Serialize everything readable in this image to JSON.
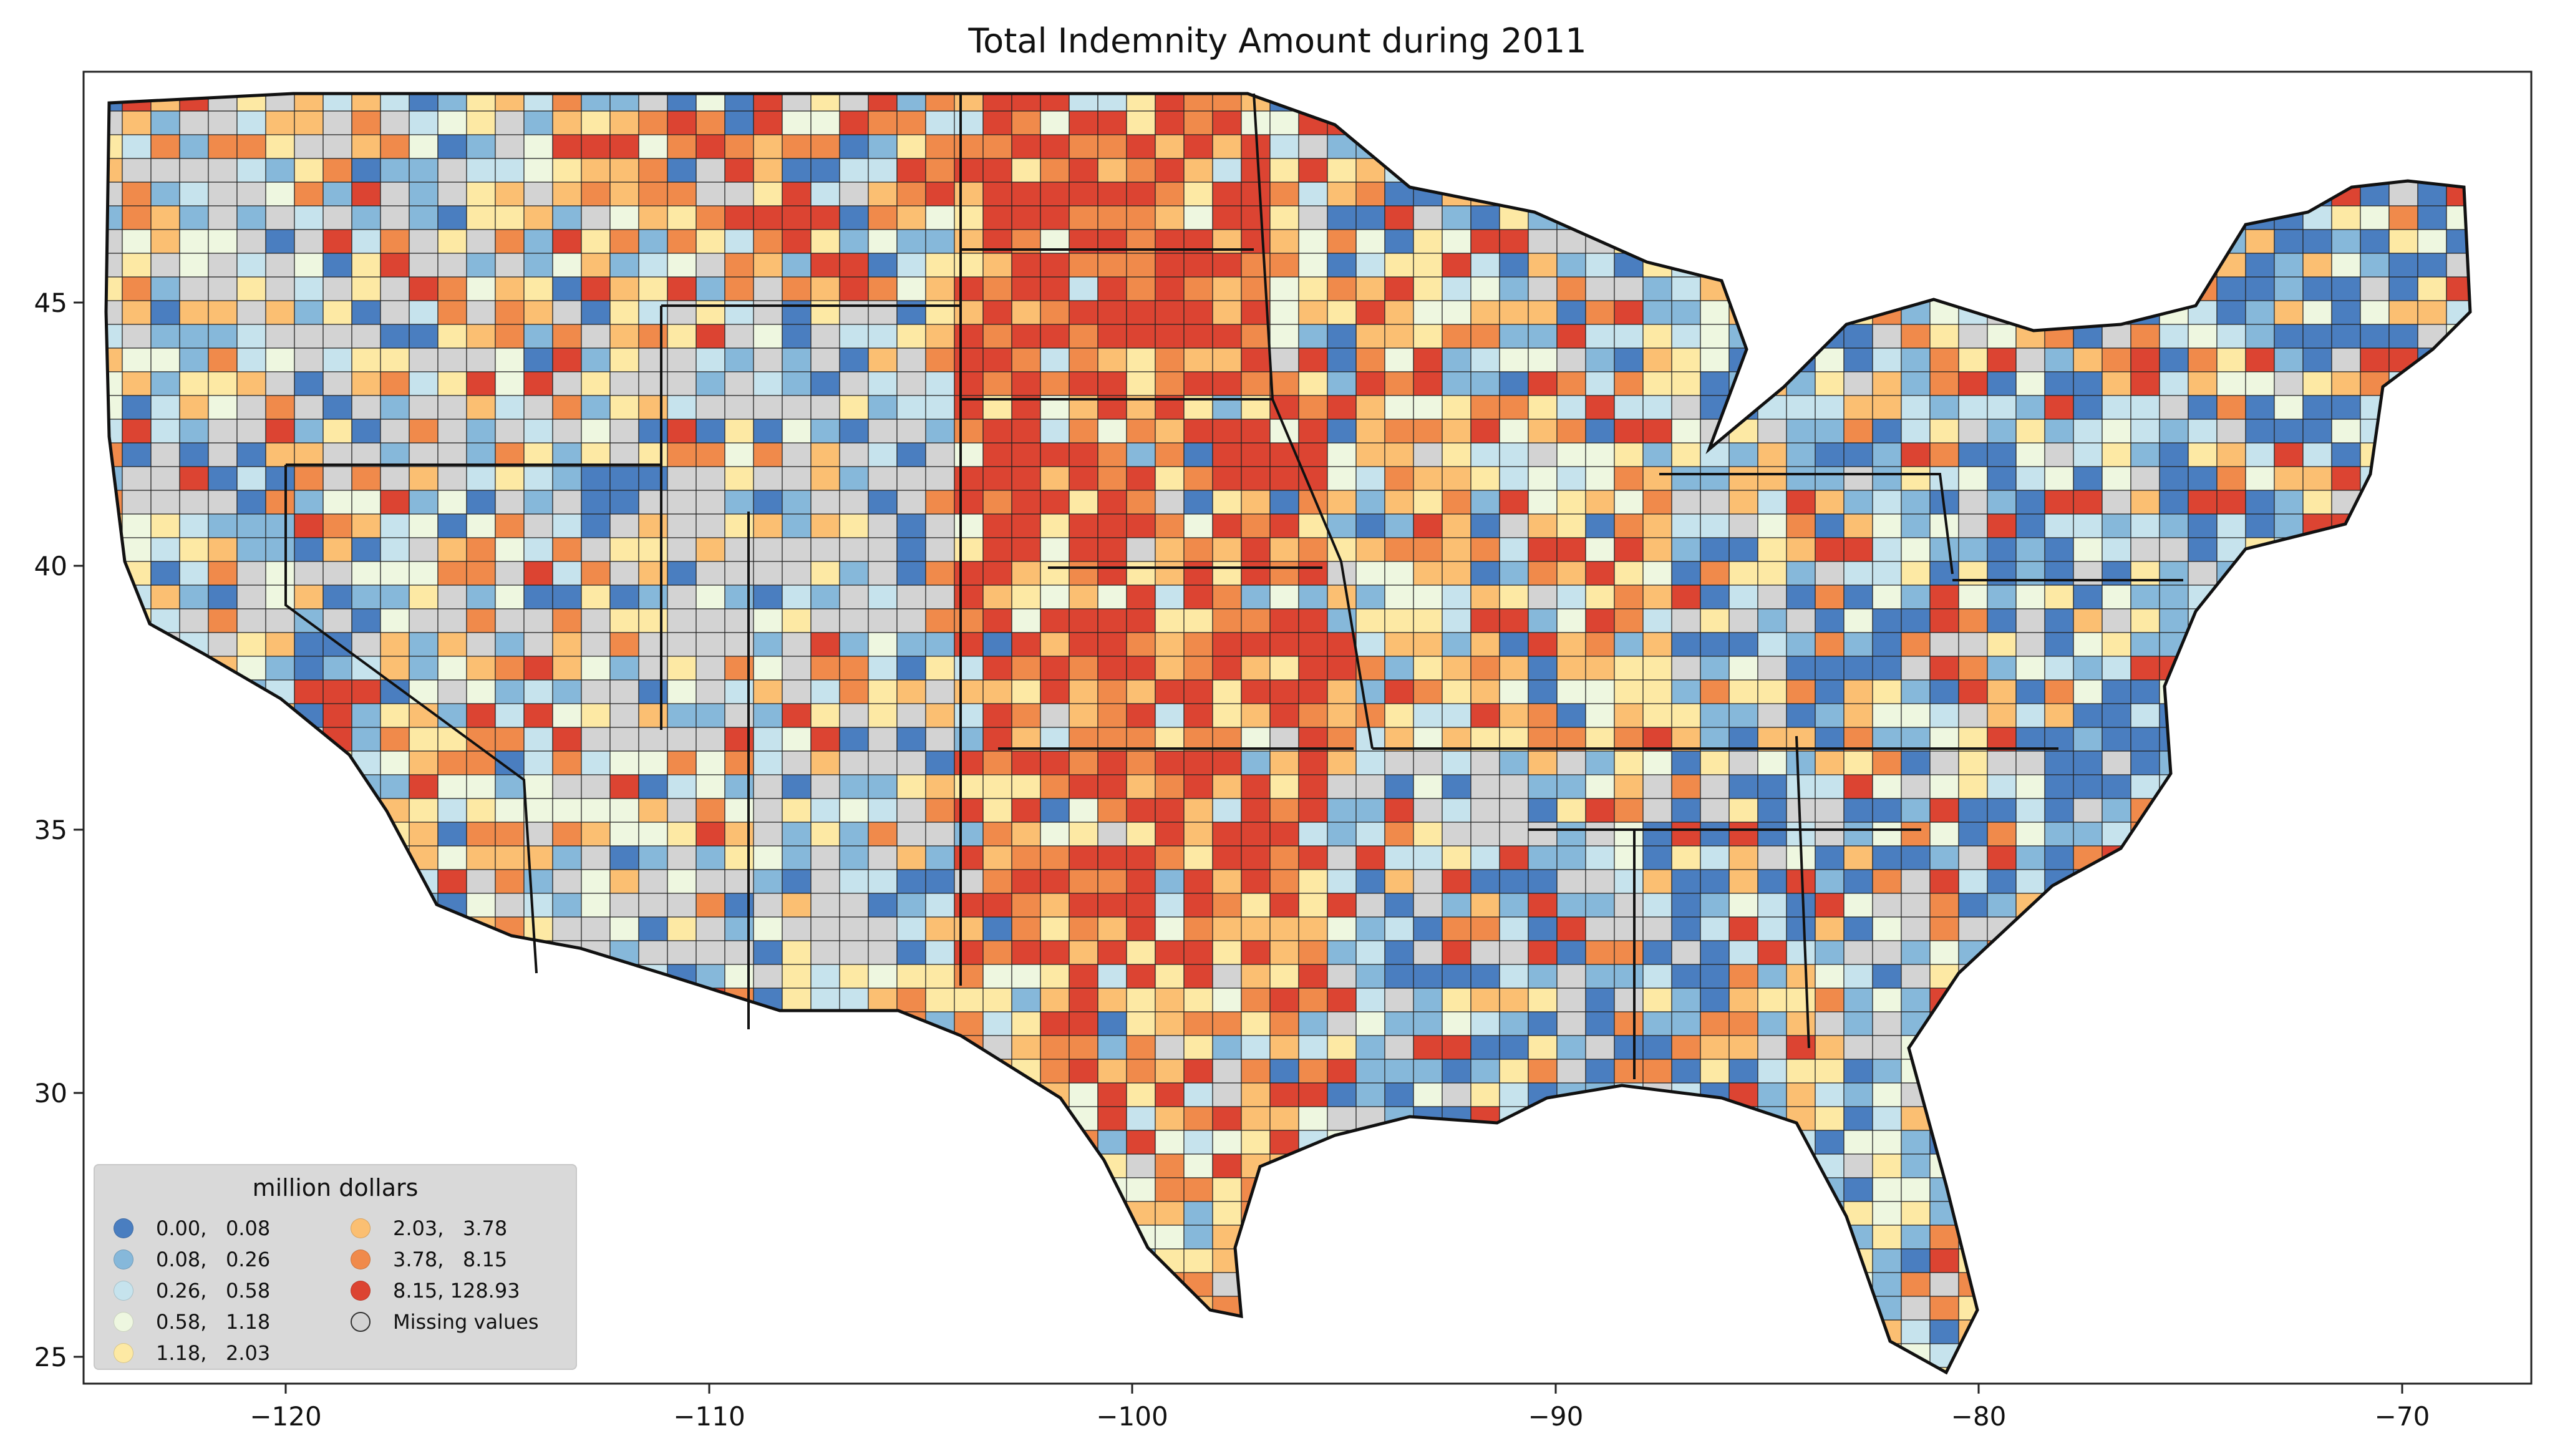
{
  "title": "Total Indemnity Amount during 2011",
  "axes": {
    "x_ticks": [
      "−120",
      "−110",
      "−100",
      "−90",
      "−80",
      "−70"
    ],
    "y_ticks": [
      "45",
      "40",
      "35",
      "30",
      "25"
    ]
  },
  "legend": {
    "title": "million dollars",
    "items": [
      {
        "label": "0.00,   0.08",
        "color": "#4a7ec0"
      },
      {
        "label": "0.08,   0.26",
        "color": "#86b8da"
      },
      {
        "label": "0.26,   0.58",
        "color": "#c6e3ed"
      },
      {
        "label": "0.58,   1.18",
        "color": "#eef7e0"
      },
      {
        "label": "1.18,   2.03",
        "color": "#fde9a4"
      },
      {
        "label": "2.03,   3.78",
        "color": "#fbbf72"
      },
      {
        "label": "3.78,   8.15",
        "color": "#f08a4b"
      },
      {
        "label": "8.15, 128.93",
        "color": "#dc4432"
      },
      {
        "label": "Missing values",
        "color": "#d3d3d3"
      }
    ]
  },
  "map_colors": {
    "missing": "#d3d3d3",
    "border": "#222222"
  }
}
